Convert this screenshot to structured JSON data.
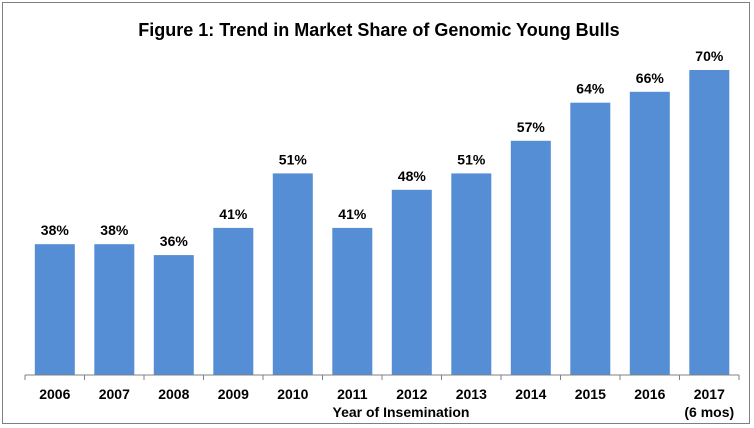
{
  "chart_data": {
    "type": "bar",
    "title": "Figure 1: Trend in Market Share of Genomic Young Bulls",
    "xlabel": "Year of Insemination",
    "ylabel": "",
    "categories": [
      "2006",
      "2007",
      "2008",
      "2009",
      "2010",
      "2011",
      "2012",
      "2013",
      "2014",
      "2015",
      "2016",
      "2017"
    ],
    "category_sublabels": [
      "",
      "",
      "",
      "",
      "",
      "",
      "",
      "",
      "",
      "",
      "",
      "(6 mos)"
    ],
    "values": [
      38,
      38,
      36,
      41,
      51,
      41,
      48,
      51,
      57,
      64,
      66,
      70
    ],
    "data_labels": [
      "38%",
      "38%",
      "36%",
      "41%",
      "51%",
      "41%",
      "48%",
      "51%",
      "57%",
      "64%",
      "66%",
      "70%"
    ],
    "ylim": [
      25,
      70
    ],
    "grid": false,
    "legend": "none",
    "bar_color": "#558ed5"
  }
}
